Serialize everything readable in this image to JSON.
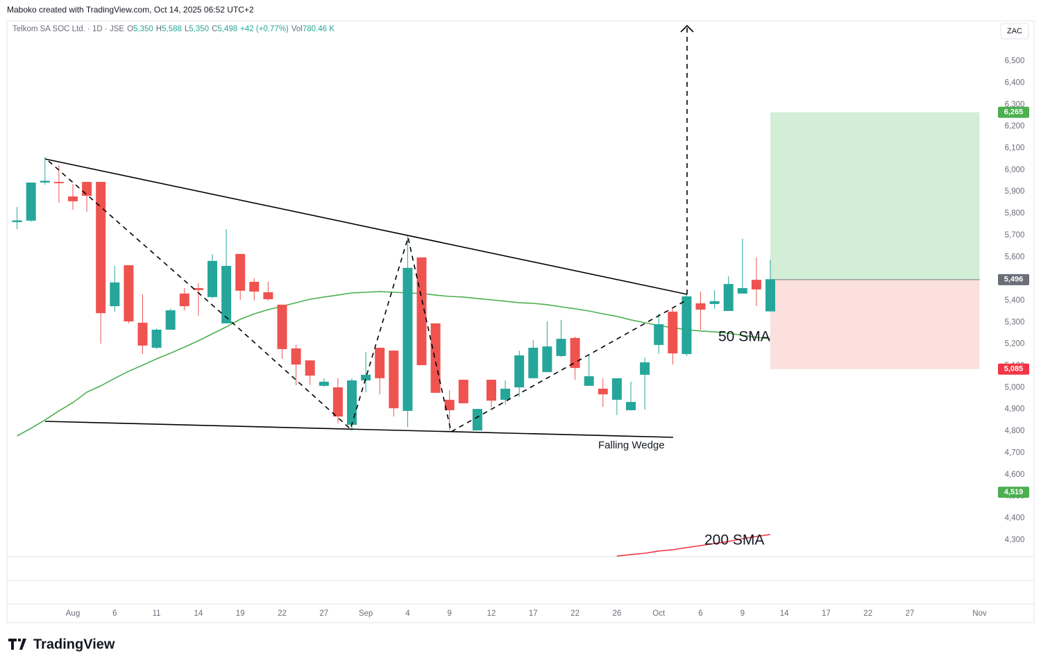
{
  "header": {
    "created": "Maboko created with TradingView.com, Oct 14, 2025 06:52 UTC+2"
  },
  "legend": {
    "symbol": "Telkom SA SOC Ltd. · 1D · JSE",
    "items": [
      {
        "key": "O",
        "value": "5,350"
      },
      {
        "key": "H",
        "value": "5,588"
      },
      {
        "key": "L",
        "value": "5,350"
      },
      {
        "key": "C",
        "value": "5,498"
      }
    ],
    "change": "+42 (+0.77%)",
    "volume_key": "Vol",
    "volume": "780.46 K"
  },
  "currency": "ZAC",
  "footer": {
    "brand": "TradingView"
  },
  "chart_data": {
    "type": "candlestick",
    "categories": [
      null,
      null,
      null,
      null,
      "Aug",
      null,
      null,
      "6",
      null,
      null,
      "11",
      null,
      null,
      "14",
      null,
      null,
      "19",
      null,
      null,
      "22",
      null,
      null,
      "27",
      null,
      null,
      "Sep",
      null,
      null,
      "4",
      null,
      null,
      "9",
      null,
      null,
      "12",
      null,
      null,
      "17",
      null,
      null,
      "22",
      null,
      null,
      "26",
      null,
      null,
      "Oct",
      null,
      null,
      "6",
      null,
      null,
      "9",
      null,
      null,
      "14",
      null,
      null,
      "17",
      null,
      null,
      "22",
      null,
      null,
      "27",
      null,
      null,
      null,
      null,
      "Nov"
    ],
    "open": [
      5760,
      5767,
      5942,
      5945,
      5878,
      5945,
      5945,
      5374,
      5562,
      5298,
      5183,
      5266,
      5432,
      5457,
      5416,
      5295,
      5614,
      5486,
      5438,
      5381,
      5180,
      5125,
      5008,
      5001,
      4829,
      5033,
      5183,
      5170,
      4893,
      5598,
      5295,
      4944,
      5036,
      4803,
      5036,
      4944,
      5001,
      5043,
      5071,
      5145,
      5228,
      5008,
      4995,
      4944,
      4896,
      5059,
      5196,
      5349,
      5154,
      5387,
      5384,
      5352,
      5432,
      5495,
      5350,
      null,
      null,
      null,
      null,
      null,
      null,
      null,
      null,
      null,
      null,
      null,
      null,
      null,
      null,
      null
    ],
    "high": [
      5830,
      5942,
      6060,
      6022,
      5935,
      5945,
      5945,
      5559,
      5562,
      5428,
      5272,
      5362,
      5457,
      5480,
      5614,
      5728,
      5614,
      5502,
      5486,
      5381,
      5196,
      5125,
      5043,
      5043,
      5043,
      5164,
      5183,
      5170,
      5696,
      5598,
      5295,
      4988,
      5036,
      4902,
      5036,
      5033,
      5170,
      5218,
      5304,
      5311,
      5234,
      5148,
      5043,
      5043,
      5027,
      5138,
      5339,
      5362,
      5428,
      5441,
      5448,
      5511,
      5684,
      5598,
      5588,
      null,
      null,
      null,
      null,
      null,
      null,
      null,
      null,
      null,
      null,
      null,
      null,
      null,
      null,
      null
    ],
    "low": [
      5728,
      5762,
      5932,
      5850,
      5817,
      5808,
      5202,
      5349,
      5295,
      5154,
      5177,
      5266,
      5355,
      5330,
      5409,
      5295,
      5403,
      5400,
      5400,
      5132,
      5011,
      5011,
      5004,
      4835,
      4803,
      4979,
      4969,
      4867,
      4819,
      5103,
      4976,
      4803,
      4928,
      4803,
      4909,
      4921,
      4957,
      5043,
      5071,
      5141,
      5036,
      5008,
      4912,
      4874,
      4896,
      4899,
      5154,
      5106,
      5145,
      5266,
      5362,
      5352,
      5432,
      5374,
      5350,
      null,
      null,
      null,
      null,
      null,
      null,
      null,
      null,
      null,
      null,
      null,
      null,
      null,
      null,
      null
    ],
    "close": [
      5768,
      5942,
      5950,
      5939,
      5856,
      5881,
      5342,
      5483,
      5304,
      5193,
      5266,
      5355,
      5374,
      5448,
      5582,
      5559,
      5445,
      5441,
      5406,
      5177,
      5106,
      5055,
      5027,
      4867,
      5033,
      5059,
      5043,
      4905,
      5550,
      5103,
      4976,
      4896,
      4928,
      4902,
      4940,
      4995,
      5148,
      5183,
      5189,
      5224,
      5090,
      5052,
      4969,
      5043,
      4934,
      5116,
      5291,
      5157,
      5419,
      5358,
      5397,
      5476,
      5457,
      5451,
      5498,
      null,
      null,
      null,
      null,
      null,
      null,
      null,
      null,
      null,
      null,
      null,
      null,
      null,
      null,
      null
    ],
    "up_color": "#26a69a",
    "down_color": "#ef5350",
    "series": [
      {
        "name": "50 SMA",
        "color": "#4caf50",
        "values": [
          4778,
          4813,
          4851,
          4893,
          4931,
          4979,
          5008,
          5043,
          5075,
          5103,
          5132,
          5158,
          5186,
          5215,
          5247,
          5279,
          5314,
          5339,
          5358,
          5374,
          5390,
          5406,
          5416,
          5425,
          5435,
          5438,
          5441,
          5438,
          5435,
          5432,
          5425,
          5419,
          5416,
          5409,
          5403,
          5397,
          5390,
          5387,
          5381,
          5371,
          5362,
          5352,
          5339,
          5327,
          5311,
          5298,
          5285,
          5275,
          5266,
          5260,
          5256,
          5250,
          5240,
          5231,
          5224,
          null,
          null,
          null,
          null,
          null,
          null,
          null,
          null,
          null,
          null,
          null,
          null,
          null,
          null,
          null
        ]
      },
      {
        "name": "200 SMA",
        "color": "#f23645",
        "values": [
          null,
          null,
          null,
          null,
          null,
          null,
          null,
          null,
          null,
          null,
          null,
          null,
          null,
          null,
          null,
          null,
          null,
          null,
          null,
          null,
          null,
          null,
          null,
          null,
          null,
          null,
          null,
          null,
          null,
          null,
          null,
          null,
          null,
          null,
          null,
          null,
          null,
          null,
          null,
          null,
          null,
          null,
          null,
          4226,
          4233,
          4239,
          4249,
          4255,
          4265,
          4274,
          4284,
          4293,
          4306,
          4316,
          4325,
          null,
          null,
          null,
          null,
          null,
          null,
          null,
          null,
          null,
          null,
          null,
          null,
          null,
          null,
          null
        ]
      }
    ],
    "position": {
      "entry": 5496,
      "target": 6265,
      "stop": 5085,
      "profit_color": "#d3eed6",
      "loss_color": "#fce0dd"
    },
    "price_labels": [
      {
        "value": 6265,
        "label": "6,265",
        "color": "#4caf50"
      },
      {
        "value": 5496,
        "label": "5,496",
        "color": "#6b6e76"
      },
      {
        "value": 5085,
        "label": "5,085",
        "color": "#f23645"
      },
      {
        "value": 4519,
        "label": "4,519",
        "color": "#4caf50"
      }
    ],
    "annotations": [
      "Falling Wedge"
    ],
    "ylim": [
      4223,
      6685
    ],
    "yticks": [
      {
        "value": 4300,
        "label": "4,300"
      },
      {
        "value": 4400,
        "label": "4,400"
      },
      {
        "value": 4500,
        "label": "4,500"
      },
      {
        "value": 4600,
        "label": "4,600"
      },
      {
        "value": 4700,
        "label": "4,700"
      },
      {
        "value": 4800,
        "label": "4,800"
      },
      {
        "value": 4900,
        "label": "4,900"
      },
      {
        "value": 5000,
        "label": "5,000"
      },
      {
        "value": 5100,
        "label": "5,100"
      },
      {
        "value": 5200,
        "label": "5,200"
      },
      {
        "value": 5300,
        "label": "5,300"
      },
      {
        "value": 5400,
        "label": "5,400"
      },
      {
        "value": 5500,
        "label": "5,500"
      },
      {
        "value": 5600,
        "label": "5,600"
      },
      {
        "value": 5700,
        "label": "5,700"
      },
      {
        "value": 5800,
        "label": "5,800"
      },
      {
        "value": 5900,
        "label": "5,900"
      },
      {
        "value": 6000,
        "label": "6,000"
      },
      {
        "value": 6100,
        "label": "6,100"
      },
      {
        "value": 6200,
        "label": "6,200"
      },
      {
        "value": 6300,
        "label": "6,300"
      },
      {
        "value": 6400,
        "label": "6,400"
      },
      {
        "value": 6500,
        "label": "6,500"
      }
    ],
    "grid": false
  }
}
